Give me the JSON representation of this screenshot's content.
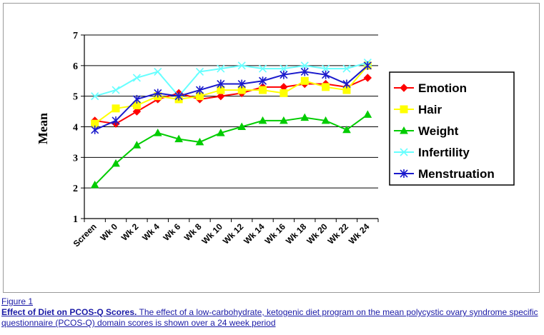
{
  "chart_data": {
    "type": "line",
    "ylabel": "Mean",
    "xlabel": "",
    "ylim": [
      1,
      7
    ],
    "yticks": [
      1,
      2,
      3,
      4,
      5,
      6,
      7
    ],
    "grid": "horizontal",
    "legend_position": "right",
    "categories": [
      "Screen",
      "Wk 0",
      "Wk 2",
      "Wk 4",
      "Wk 6",
      "Wk 8",
      "Wk 10",
      "Wk 12",
      "Wk 14",
      "Wk 16",
      "Wk 18",
      "Wk 20",
      "Wk 22",
      "Wk 24"
    ],
    "series": [
      {
        "name": "Emotion",
        "color": "#ff0000",
        "marker": "diamond",
        "values": [
          4.2,
          4.1,
          4.5,
          4.9,
          5.1,
          4.9,
          5.0,
          5.1,
          5.3,
          5.3,
          5.4,
          5.4,
          5.3,
          5.6
        ]
      },
      {
        "name": "Hair",
        "color": "#ffff00",
        "marker": "square",
        "values": [
          4.1,
          4.6,
          4.7,
          5.0,
          4.9,
          5.0,
          5.2,
          5.2,
          5.2,
          5.1,
          5.5,
          5.3,
          5.2,
          6.0
        ]
      },
      {
        "name": "Weight",
        "color": "#00cc00",
        "marker": "triangle",
        "values": [
          2.1,
          2.8,
          3.4,
          3.8,
          3.6,
          3.5,
          3.8,
          4.0,
          4.2,
          4.2,
          4.3,
          4.2,
          3.9,
          4.4
        ]
      },
      {
        "name": "Infertility",
        "color": "#66ffff",
        "marker": "x",
        "values": [
          5.0,
          5.2,
          5.6,
          5.8,
          5.0,
          5.8,
          5.9,
          6.0,
          5.9,
          5.9,
          6.0,
          5.9,
          5.9,
          6.1
        ]
      },
      {
        "name": "Menstruation",
        "color": "#1a1acc",
        "marker": "star",
        "values": [
          3.9,
          4.2,
          4.9,
          5.1,
          5.0,
          5.2,
          5.4,
          5.4,
          5.5,
          5.7,
          5.8,
          5.7,
          5.4,
          6.0
        ]
      }
    ]
  },
  "caption": {
    "figure_label": "Figure 1",
    "title": "Effect of Diet on PCOS-Q Scores.",
    "text": " The effect of a low-carbohydrate, ketogenic diet program on the mean polycystic ovary syndrome specific questionnaire (PCOS-Q) domain scores is shown over a 24 week period"
  }
}
